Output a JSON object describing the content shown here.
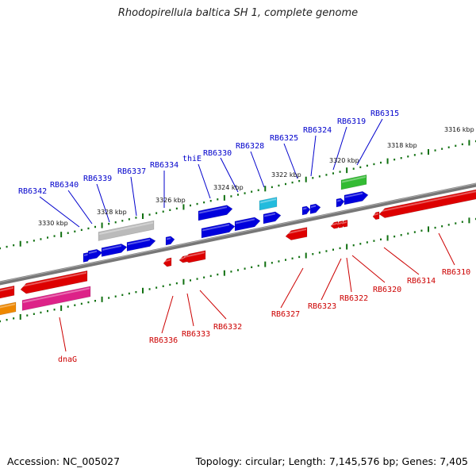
{
  "header": {
    "title": "Rhodopirellula baltica SH 1, complete genome"
  },
  "footer": {
    "accession": "Accession: NC_005027",
    "summary": "Topology: circular; Length: 7,145,576 bp; Genes: 7,405"
  },
  "colors": {
    "backbone": "#777777",
    "forward": "#0000dd",
    "reverse": "#dd0000",
    "tick": "#107010",
    "gray": "#bbbbbb",
    "cyan": "#22bbdd",
    "green": "#33bb33",
    "magenta": "#dd2288",
    "orange": "#ee8800",
    "pos_label": "#0000cc",
    "neg_label": "#cc0000"
  },
  "diagram": {
    "kbp_labels": [
      "3330 kbp",
      "3328 kbp",
      "3326 kbp",
      "3324 kbp",
      "3322 kbp",
      "3320 kbp",
      "3318 kbp",
      "3316 kbp"
    ],
    "top_labels": [
      "RB6342",
      "RB6340",
      "RB6339",
      "RB6337",
      "RB6334",
      "thiE",
      "RB6330",
      "RB6328",
      "RB6325",
      "RB6324",
      "RB6319",
      "RB6315"
    ],
    "bottom_labels": [
      "dnaG",
      "RB6336",
      "RB6333",
      "RB6332",
      "RB6327",
      "RB6323",
      "RB6322",
      "RB6320",
      "RB6314",
      "RB6310"
    ]
  }
}
